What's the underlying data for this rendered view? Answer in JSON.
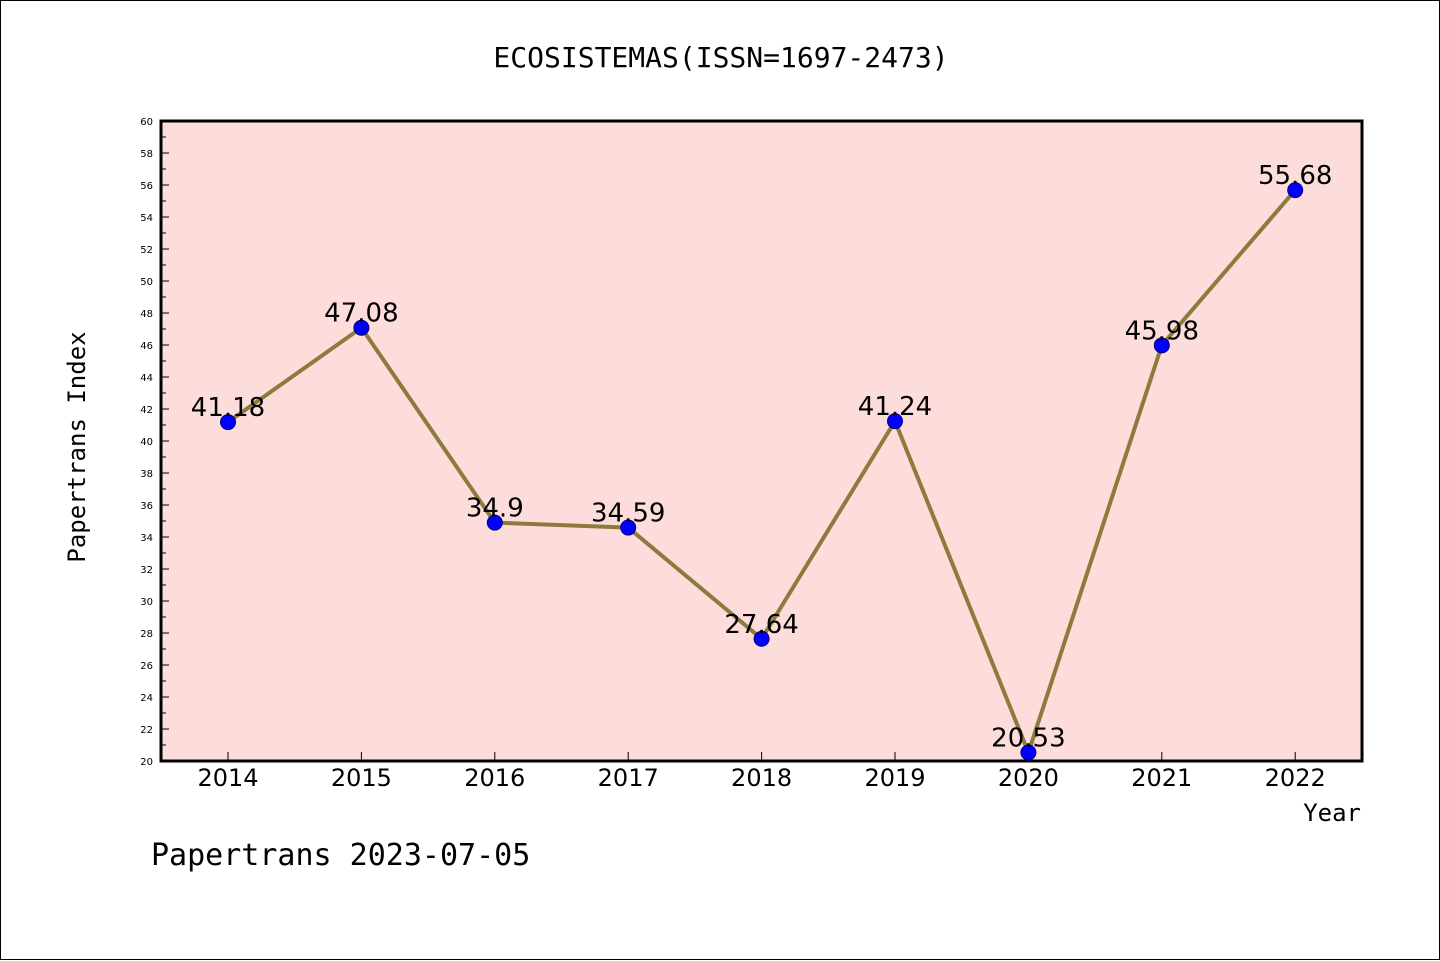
{
  "chart_data": {
    "type": "line",
    "title": "ECOSISTEMAS(ISSN=1697-2473)",
    "xlabel": "Year",
    "ylabel": "Papertrans Index",
    "x": [
      "2014",
      "2015",
      "2016",
      "2017",
      "2018",
      "2019",
      "2020",
      "2021",
      "2022"
    ],
    "series": [
      {
        "values": [
          41.18,
          47.08,
          34.9,
          34.59,
          27.64,
          41.24,
          20.53,
          45.98,
          55.68
        ],
        "labels": [
          "41.18",
          "47.08",
          "34.9",
          "34.59",
          "27.64",
          "41.24",
          "20.53",
          "45.98",
          "55.68"
        ]
      }
    ],
    "ylim": [
      20,
      60
    ],
    "yticks": [
      "20",
      "22",
      "24",
      "26",
      "28",
      "30",
      "32",
      "34",
      "36",
      "38",
      "40",
      "42",
      "44",
      "46",
      "48",
      "50",
      "52",
      "54",
      "56",
      "58",
      "60"
    ],
    "grid": false,
    "legend": "none",
    "colors": {
      "plot_background": "#fddcdc",
      "line": "#8c7b3d",
      "marker": "#0000ff"
    }
  },
  "footer": "Papertrans 2023-07-05"
}
